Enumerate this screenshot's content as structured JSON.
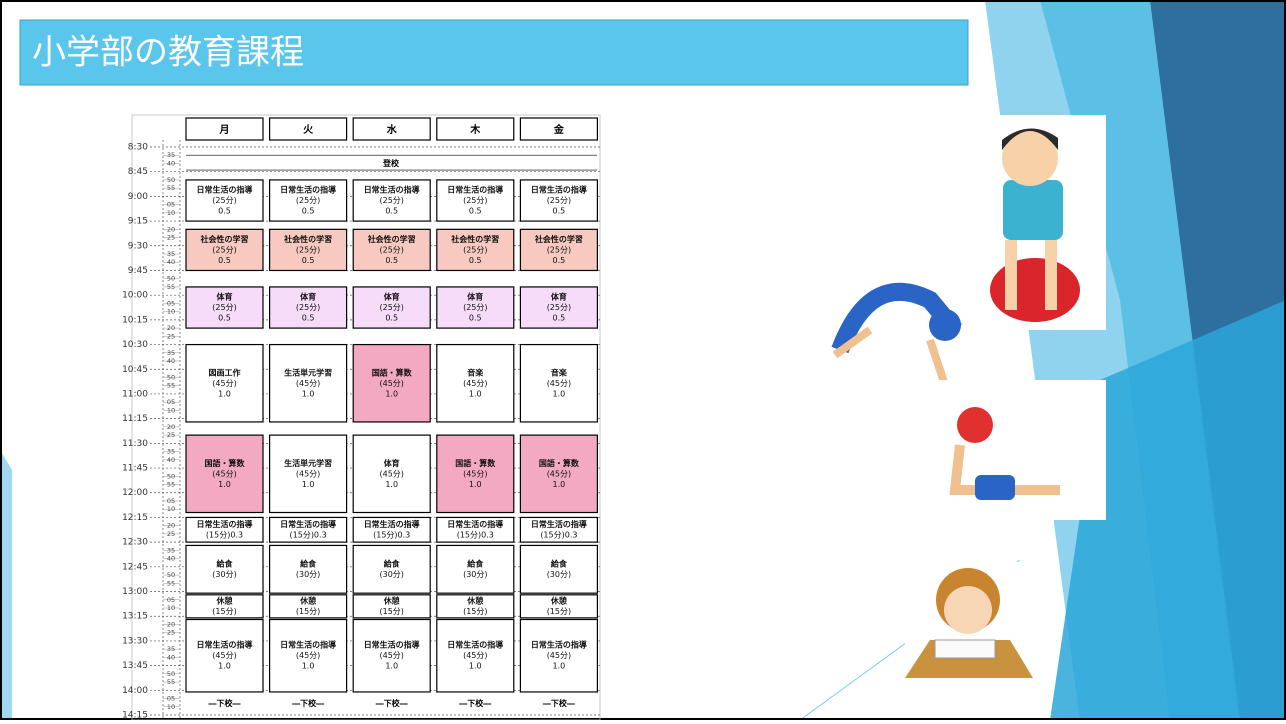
{
  "title": "小学部の教育課程",
  "timetable": {
    "days": [
      "月",
      "火",
      "水",
      "木",
      "金"
    ],
    "times": [
      "8:30",
      "8:45",
      "9:00",
      "9:15",
      "9:30",
      "9:45",
      "10:00",
      "10:15",
      "10:30",
      "10:45",
      "11:00",
      "11:15",
      "11:30",
      "11:45",
      "12:00",
      "12:15",
      "12:30",
      "12:45",
      "13:00",
      "13:15",
      "13:30",
      "13:45",
      "14:00",
      "14:15"
    ],
    "minutes": [
      "35",
      "40",
      "50",
      "55",
      "05",
      "10",
      "20",
      "25",
      "35",
      "40",
      "50",
      "55",
      "05",
      "10",
      "20",
      "25",
      "35",
      "40",
      "50",
      "55",
      "05",
      "10",
      "20",
      "25",
      "35",
      "40",
      "50",
      "55",
      "05",
      "10",
      "20",
      "25",
      "35",
      "40",
      "50",
      "55",
      "05",
      "10",
      "20",
      "25",
      "35",
      "40",
      "50",
      "55",
      "05",
      "10"
    ],
    "arrival": "登校",
    "rows": [
      {
        "cells": [
          [
            "日常生活の指導",
            "(25分)",
            "0.5"
          ],
          [
            "日常生活の指導",
            "(25分)",
            "0.5"
          ],
          [
            "日常生活の指導",
            "(25分)",
            "0.5"
          ],
          [
            "日常生活の指導",
            "(25分)",
            "0.5"
          ],
          [
            "日常生活の指導",
            "(25分)",
            "0.5"
          ]
        ],
        "colors": [
          "#ffffff",
          "#ffffff",
          "#ffffff",
          "#ffffff",
          "#ffffff"
        ]
      },
      {
        "cells": [
          [
            "社会性の学習",
            "(25分)",
            "0.5"
          ],
          [
            "社会性の学習",
            "(25分)",
            "0.5"
          ],
          [
            "社会性の学習",
            "(25分)",
            "0.5"
          ],
          [
            "社会性の学習",
            "(25分)",
            "0.5"
          ],
          [
            "社会性の学習",
            "(25分)",
            "0.5"
          ]
        ],
        "colors": [
          "#f8c9c0",
          "#f8c9c0",
          "#f8c9c0",
          "#f8c9c0",
          "#f8c9c0"
        ]
      },
      {
        "cells": [
          [
            "体育",
            "(25分)",
            "0.5"
          ],
          [
            "体育",
            "(25分)",
            "0.5"
          ],
          [
            "体育",
            "(25分)",
            "0.5"
          ],
          [
            "体育",
            "(25分)",
            "0.5"
          ],
          [
            "体育",
            "(25分)",
            "0.5"
          ]
        ],
        "colors": [
          "#f6dcf8",
          "#f6dcf8",
          "#f6dcf8",
          "#f6dcf8",
          "#f6dcf8"
        ]
      },
      {
        "cells": [
          [
            "図画工作",
            "(45分)",
            "1.0"
          ],
          [
            "生活単元学習",
            "(45分)",
            "1.0"
          ],
          [
            "国語・算数",
            "(45分)",
            "1.0"
          ],
          [
            "音楽",
            "(45分)",
            "1.0"
          ],
          [
            "音楽",
            "(45分)",
            "1.0"
          ]
        ],
        "colors": [
          "#ffffff",
          "#ffffff",
          "#f4a9c2",
          "#ffffff",
          "#ffffff"
        ]
      },
      {
        "cells": [
          [
            "国語・算数",
            "(45分)",
            "1.0"
          ],
          [
            "生活単元学習",
            "(45分)",
            "1.0"
          ],
          [
            "体育",
            "(45分)",
            "1.0"
          ],
          [
            "国語・算数",
            "(45分)",
            "1.0"
          ],
          [
            "国語・算数",
            "(45分)",
            "1.0"
          ]
        ],
        "colors": [
          "#f4a9c2",
          "#ffffff",
          "#ffffff",
          "#f4a9c2",
          "#f4a9c2"
        ]
      },
      {
        "cells": [
          [
            "日常生活の指導",
            "(15分)0.3"
          ],
          [
            "日常生活の指導",
            "(15分)0.3"
          ],
          [
            "日常生活の指導",
            "(15分)0.3"
          ],
          [
            "日常生活の指導",
            "(15分)0.3"
          ],
          [
            "日常生活の指導",
            "(15分)0.3"
          ]
        ],
        "colors": [
          "#ffffff",
          "#ffffff",
          "#ffffff",
          "#ffffff",
          "#ffffff"
        ]
      },
      {
        "cells": [
          [
            "給食",
            "(30分)"
          ],
          [
            "給食",
            "(30分)"
          ],
          [
            "給食",
            "(30分)"
          ],
          [
            "給食",
            "(30分)"
          ],
          [
            "給食",
            "(30分)"
          ]
        ],
        "colors": [
          "#ffffff",
          "#ffffff",
          "#ffffff",
          "#ffffff",
          "#ffffff"
        ]
      },
      {
        "cells": [
          [
            "休憩",
            "(15分)"
          ],
          [
            "休憩",
            "(15分)"
          ],
          [
            "休憩",
            "(15分)"
          ],
          [
            "休憩",
            "(15分)"
          ],
          [
            "休憩",
            "(15分)"
          ]
        ],
        "colors": [
          "#ffffff",
          "#ffffff",
          "#ffffff",
          "#ffffff",
          "#ffffff"
        ]
      },
      {
        "cells": [
          [
            "日常生活の指導",
            "(45分)",
            "1.0"
          ],
          [
            "日常生活の指導",
            "(45分)",
            "1.0"
          ],
          [
            "日常生活の指導",
            "(45分)",
            "1.0"
          ],
          [
            "日常生活の指導",
            "(45分)",
            "1.0"
          ],
          [
            "日常生活の指導",
            "(45分)",
            "1.0"
          ]
        ],
        "colors": [
          "#ffffff",
          "#ffffff",
          "#ffffff",
          "#ffffff",
          "#ffffff"
        ]
      }
    ],
    "dismissal": [
      "―下校―",
      "―下校―",
      "―下校―",
      "―下校―",
      "―下校―"
    ]
  }
}
